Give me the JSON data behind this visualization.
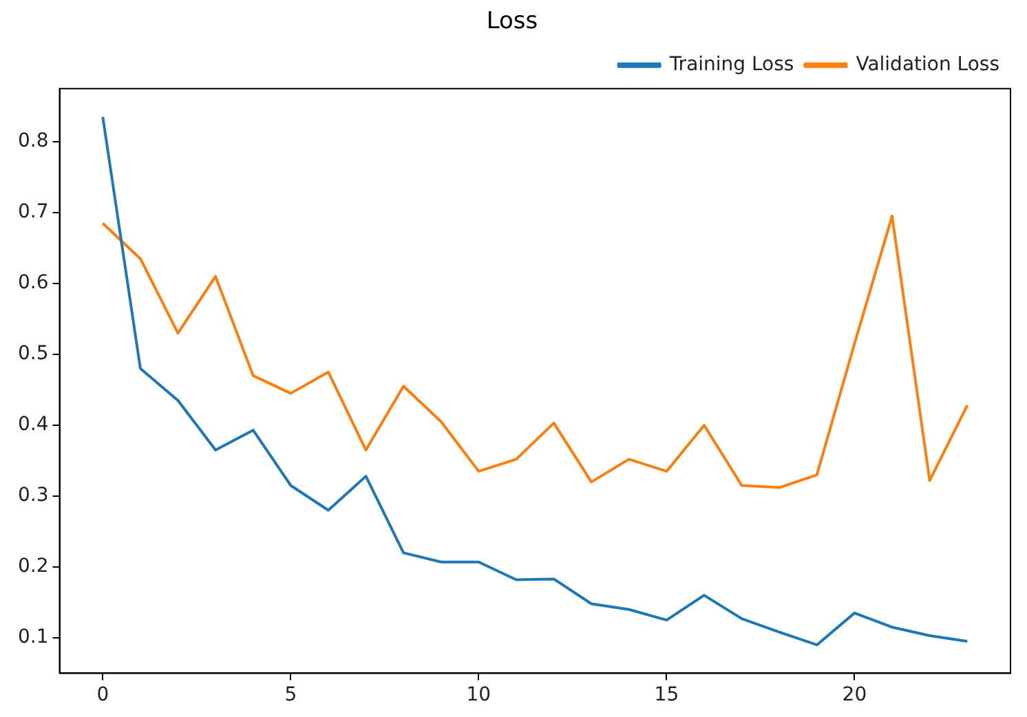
{
  "chart_data": {
    "type": "line",
    "title": "Loss",
    "x": [
      0,
      1,
      2,
      3,
      4,
      5,
      6,
      7,
      8,
      9,
      10,
      11,
      12,
      13,
      14,
      15,
      16,
      17,
      18,
      19,
      20,
      21,
      22,
      23
    ],
    "series": [
      {
        "name": "Training Loss",
        "color": "#1f77b4",
        "values": [
          0.835,
          0.48,
          0.435,
          0.365,
          0.393,
          0.315,
          0.28,
          0.328,
          0.22,
          0.207,
          0.207,
          0.182,
          0.183,
          0.148,
          0.14,
          0.125,
          0.16,
          0.127,
          0.108,
          0.09,
          0.135,
          0.115,
          0.103,
          0.095
        ]
      },
      {
        "name": "Validation Loss",
        "color": "#ff7f0e",
        "values": [
          0.685,
          0.635,
          0.53,
          0.61,
          0.47,
          0.445,
          0.475,
          0.365,
          0.455,
          0.405,
          0.335,
          0.352,
          0.403,
          0.32,
          0.352,
          0.335,
          0.4,
          0.315,
          0.312,
          0.33,
          0.515,
          0.695,
          0.322,
          0.428
        ]
      }
    ],
    "xlim": [
      -1.15,
      24.15
    ],
    "xticks": [
      0,
      5,
      10,
      15,
      20
    ],
    "ylim": [
      0.05,
      0.875
    ],
    "yticks": [
      0.1,
      0.2,
      0.3,
      0.4,
      0.5,
      0.6,
      0.7,
      0.8
    ],
    "grid": false,
    "legend": "top right",
    "marker": "none",
    "line_style": "solid"
  }
}
